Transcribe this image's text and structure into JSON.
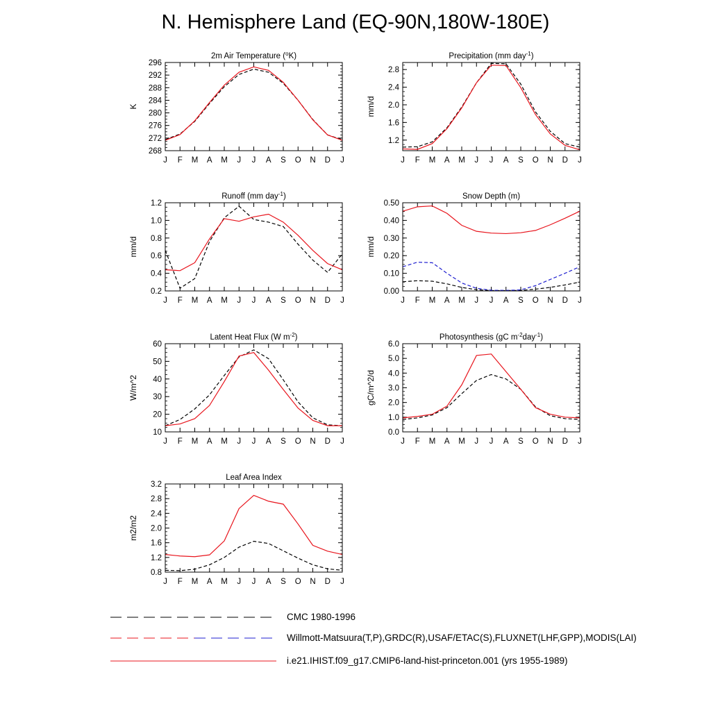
{
  "title": "N. Hemisphere Land (EQ-90N,180W-180E)",
  "colors": {
    "model": "#e8141c",
    "obs": "#000000",
    "obs_alt": "#1f1fd0"
  },
  "legend": {
    "entries": [
      {
        "label": "CMC 1980-1996",
        "style": "dash-black"
      },
      {
        "label": "Willmott-Matsuura(T,P),GRDC(R),USAF/ETAC(S),FLUXNET(LHF,GPP),MODIS(LAI)",
        "style": "dash-red-blue"
      },
      {
        "label": "i.e21.IHIST.f09_g17.CMIP6-land-hist-princeton.001 (yrs 1955-1989)",
        "style": "solid-red"
      }
    ]
  },
  "chart_data": [
    {
      "type": "line",
      "id": "temp",
      "title_parts": [
        "2m Air Temperature (",
        "o",
        "K)"
      ],
      "ylabel": "K",
      "ylim": [
        268,
        296
      ],
      "yticks": [
        268,
        272,
        276,
        280,
        284,
        288,
        292,
        296
      ],
      "ytick_labels": [
        "268",
        "272",
        "276",
        "280",
        "284",
        "288",
        "292",
        "296"
      ],
      "categories": [
        "J",
        "F",
        "M",
        "A",
        "M",
        "J",
        "J",
        "A",
        "S",
        "O",
        "N",
        "D",
        "J"
      ],
      "series": [
        {
          "style": "obs",
          "values": [
            271.5,
            273.3,
            277.3,
            283.0,
            288.3,
            292.2,
            293.9,
            292.9,
            289.4,
            284.0,
            277.9,
            273.0,
            271.5
          ]
        },
        {
          "style": "model",
          "values": [
            271.3,
            273.1,
            277.5,
            283.3,
            288.8,
            292.9,
            294.6,
            293.5,
            289.7,
            284.0,
            277.8,
            273.0,
            271.3
          ]
        }
      ]
    },
    {
      "type": "line",
      "id": "precip",
      "title_parts": [
        "Precipitation (mm day",
        "-1",
        ")"
      ],
      "ylabel": "mm/d",
      "ylim": [
        0.96,
        2.96
      ],
      "yticks": [
        1.2,
        1.6,
        2.0,
        2.4,
        2.8
      ],
      "ytick_labels": [
        "1.2",
        "1.6",
        "2.0",
        "2.4",
        "2.8"
      ],
      "categories": [
        "J",
        "F",
        "M",
        "A",
        "M",
        "J",
        "J",
        "A",
        "S",
        "O",
        "N",
        "D",
        "J"
      ],
      "series": [
        {
          "style": "obs",
          "values": [
            1.04,
            1.05,
            1.16,
            1.48,
            1.95,
            2.5,
            2.94,
            2.93,
            2.47,
            1.84,
            1.4,
            1.12,
            1.04
          ]
        },
        {
          "style": "model",
          "values": [
            1.0,
            0.99,
            1.12,
            1.46,
            1.93,
            2.5,
            2.9,
            2.89,
            2.39,
            1.78,
            1.34,
            1.08,
            0.98
          ]
        }
      ]
    },
    {
      "type": "line",
      "id": "runoff",
      "title_parts": [
        "Runoff (mm day",
        "-1",
        ")"
      ],
      "ylabel": "mm/d",
      "ylim": [
        0.2,
        1.2
      ],
      "yticks": [
        0.2,
        0.4,
        0.6,
        0.8,
        1.0,
        1.2
      ],
      "ytick_labels": [
        "0.2",
        "0.4",
        "0.6",
        "0.8",
        "1.0",
        "1.2"
      ],
      "categories": [
        "J",
        "F",
        "M",
        "A",
        "M",
        "J",
        "J",
        "A",
        "S",
        "O",
        "N",
        "D",
        "J"
      ],
      "series": [
        {
          "style": "obs",
          "values": [
            0.66,
            0.23,
            0.34,
            0.76,
            1.03,
            1.16,
            1.01,
            0.98,
            0.93,
            0.73,
            0.55,
            0.41,
            0.62
          ]
        },
        {
          "style": "model",
          "values": [
            0.44,
            0.43,
            0.52,
            0.79,
            1.02,
            0.99,
            1.04,
            1.07,
            0.98,
            0.83,
            0.66,
            0.51,
            0.44
          ]
        }
      ]
    },
    {
      "type": "line",
      "id": "snow",
      "title_parts": [
        "Snow Depth (m)"
      ],
      "ylabel": "mm/d",
      "ylim": [
        0,
        0.5
      ],
      "yticks": [
        0,
        0.1,
        0.2,
        0.3,
        0.4,
        0.5
      ],
      "ytick_labels": [
        "0.00",
        "0.10",
        "0.20",
        "0.30",
        "0.40",
        "0.50"
      ],
      "categories": [
        "J",
        "F",
        "M",
        "A",
        "M",
        "J",
        "J",
        "A",
        "S",
        "O",
        "N",
        "D",
        "J"
      ],
      "series": [
        {
          "style": "obs",
          "values": [
            0.052,
            0.058,
            0.055,
            0.04,
            0.02,
            0.007,
            0.002,
            0.002,
            0.003,
            0.01,
            0.02,
            0.034,
            0.05
          ]
        },
        {
          "style": "obs_alt",
          "values": [
            0.137,
            0.163,
            0.16,
            0.1,
            0.045,
            0.015,
            0.004,
            0.003,
            0.006,
            0.03,
            0.065,
            0.1,
            0.137
          ]
        },
        {
          "style": "model",
          "values": [
            0.452,
            0.477,
            0.482,
            0.44,
            0.372,
            0.338,
            0.328,
            0.325,
            0.33,
            0.343,
            0.375,
            0.412,
            0.452
          ]
        }
      ]
    },
    {
      "type": "line",
      "id": "lhf",
      "title_parts": [
        "Latent Heat Flux (W m",
        "-2",
        ")"
      ],
      "ylabel": "W/m^2",
      "ylim": [
        10,
        60
      ],
      "yticks": [
        10,
        20,
        30,
        40,
        50,
        60
      ],
      "ytick_labels": [
        "10",
        "20",
        "30",
        "40",
        "50",
        "60"
      ],
      "categories": [
        "J",
        "F",
        "M",
        "A",
        "M",
        "J",
        "J",
        "A",
        "S",
        "O",
        "N",
        "D",
        "J"
      ],
      "series": [
        {
          "style": "obs",
          "values": [
            13.5,
            17.0,
            23.0,
            31.0,
            42.0,
            52.5,
            56.5,
            51.5,
            39.5,
            27.0,
            18.0,
            14.0,
            13.5
          ]
        },
        {
          "style": "model",
          "values": [
            13.5,
            14.5,
            17.5,
            25.0,
            38.5,
            53.0,
            55.0,
            45.0,
            34.0,
            23.5,
            16.5,
            13.5,
            13.5
          ]
        }
      ]
    },
    {
      "type": "line",
      "id": "gpp",
      "title_parts": [
        "Photosynthesis (gC m",
        "-2",
        "day",
        "-1",
        ")"
      ],
      "ylabel": "gC/m^2/d",
      "ylim": [
        0,
        6
      ],
      "yticks": [
        0,
        1,
        2,
        3,
        4,
        5,
        6
      ],
      "ytick_labels": [
        "0.0",
        "1.0",
        "2.0",
        "3.0",
        "4.0",
        "5.0",
        "6.0"
      ],
      "categories": [
        "J",
        "F",
        "M",
        "A",
        "M",
        "J",
        "J",
        "A",
        "S",
        "O",
        "N",
        "D",
        "J"
      ],
      "series": [
        {
          "style": "obs",
          "values": [
            0.85,
            0.95,
            1.15,
            1.65,
            2.6,
            3.5,
            3.9,
            3.6,
            2.9,
            1.7,
            1.1,
            0.9,
            0.85
          ]
        },
        {
          "style": "model",
          "values": [
            0.95,
            1.05,
            1.2,
            1.75,
            3.2,
            5.2,
            5.3,
            4.1,
            2.9,
            1.65,
            1.2,
            1.0,
            0.95
          ]
        }
      ]
    },
    {
      "type": "line",
      "id": "lai",
      "title_parts": [
        "Leaf Area Index"
      ],
      "ylabel": "m2/m2",
      "ylim": [
        0.8,
        3.2
      ],
      "yticks": [
        0.8,
        1.2,
        1.6,
        2.0,
        2.4,
        2.8,
        3.2
      ],
      "ytick_labels": [
        "0.8",
        "1.2",
        "1.6",
        "2.0",
        "2.4",
        "2.8",
        "3.2"
      ],
      "categories": [
        "J",
        "F",
        "M",
        "A",
        "M",
        "J",
        "J",
        "A",
        "S",
        "O",
        "N",
        "D",
        "J"
      ],
      "series": [
        {
          "style": "obs",
          "values": [
            0.85,
            0.84,
            0.88,
            1.0,
            1.2,
            1.48,
            1.64,
            1.58,
            1.38,
            1.18,
            1.0,
            0.89,
            0.85
          ]
        },
        {
          "style": "model",
          "values": [
            1.28,
            1.24,
            1.22,
            1.27,
            1.65,
            2.53,
            2.89,
            2.73,
            2.65,
            2.11,
            1.53,
            1.37,
            1.28
          ]
        }
      ]
    }
  ]
}
